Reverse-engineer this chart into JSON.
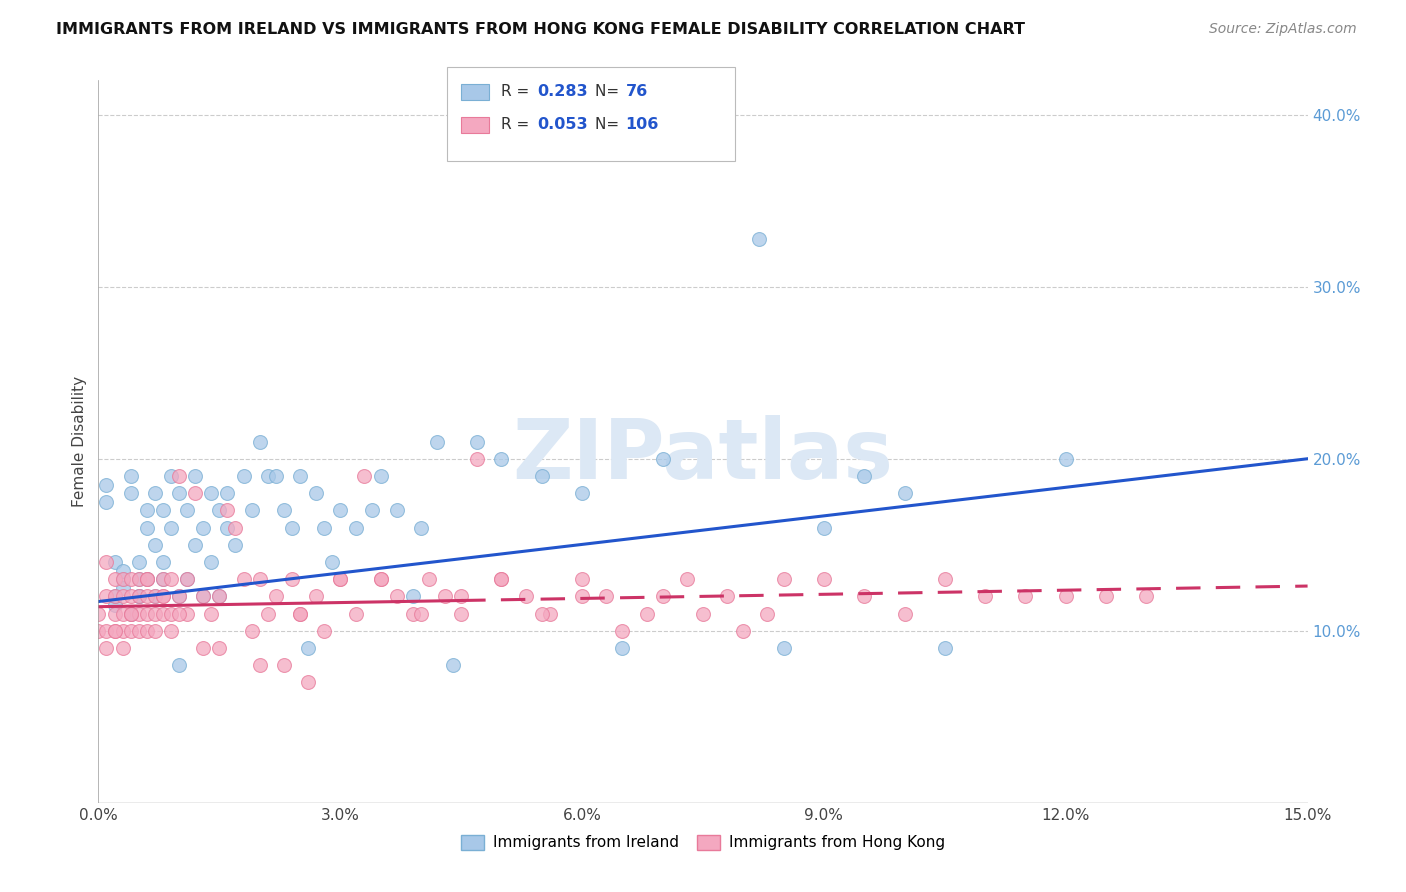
{
  "title": "IMMIGRANTS FROM IRELAND VS IMMIGRANTS FROM HONG KONG FEMALE DISABILITY CORRELATION CHART",
  "source": "Source: ZipAtlas.com",
  "ylabel": "Female Disability",
  "xlabel": "",
  "xlim": [
    0.0,
    0.15
  ],
  "ylim": [
    0.0,
    0.42
  ],
  "xticks": [
    0.0,
    0.03,
    0.06,
    0.09,
    0.12,
    0.15
  ],
  "yticks": [
    0.1,
    0.2,
    0.3,
    0.4
  ],
  "ireland_color": "#a8c8e8",
  "ireland_edge_color": "#7aafd4",
  "hong_kong_color": "#f4a8c0",
  "hong_kong_edge_color": "#e87a9a",
  "ireland_R": 0.283,
  "ireland_N": 76,
  "hong_kong_R": 0.053,
  "hong_kong_N": 106,
  "ireland_trend_color": "#2255cc",
  "hong_kong_trend_color": "#cc3366",
  "watermark": "ZIPatlas",
  "watermark_color": "#dce8f5",
  "ireland_trend_x": [
    0.0,
    0.15
  ],
  "ireland_trend_y": [
    0.117,
    0.2
  ],
  "hk_trend_x": [
    0.0,
    0.15
  ],
  "hk_trend_y": [
    0.114,
    0.126
  ],
  "ireland_x": [
    0.001,
    0.001,
    0.002,
    0.002,
    0.002,
    0.003,
    0.003,
    0.003,
    0.004,
    0.004,
    0.004,
    0.005,
    0.005,
    0.005,
    0.005,
    0.006,
    0.006,
    0.006,
    0.007,
    0.007,
    0.007,
    0.008,
    0.008,
    0.008,
    0.009,
    0.009,
    0.01,
    0.01,
    0.01,
    0.011,
    0.011,
    0.012,
    0.012,
    0.013,
    0.013,
    0.014,
    0.014,
    0.015,
    0.015,
    0.016,
    0.016,
    0.017,
    0.018,
    0.019,
    0.02,
    0.021,
    0.022,
    0.023,
    0.024,
    0.025,
    0.026,
    0.027,
    0.028,
    0.029,
    0.03,
    0.032,
    0.034,
    0.035,
    0.037,
    0.039,
    0.04,
    0.042,
    0.044,
    0.047,
    0.05,
    0.055,
    0.06,
    0.065,
    0.07,
    0.082,
    0.085,
    0.09,
    0.095,
    0.1,
    0.105,
    0.12
  ],
  "ireland_y": [
    0.175,
    0.185,
    0.115,
    0.14,
    0.12,
    0.13,
    0.125,
    0.135,
    0.19,
    0.18,
    0.11,
    0.12,
    0.13,
    0.14,
    0.12,
    0.17,
    0.16,
    0.13,
    0.18,
    0.15,
    0.12,
    0.17,
    0.14,
    0.13,
    0.19,
    0.16,
    0.18,
    0.12,
    0.08,
    0.17,
    0.13,
    0.19,
    0.15,
    0.16,
    0.12,
    0.18,
    0.14,
    0.17,
    0.12,
    0.18,
    0.16,
    0.15,
    0.19,
    0.17,
    0.21,
    0.19,
    0.19,
    0.17,
    0.16,
    0.19,
    0.09,
    0.18,
    0.16,
    0.14,
    0.17,
    0.16,
    0.17,
    0.19,
    0.17,
    0.12,
    0.16,
    0.21,
    0.08,
    0.21,
    0.2,
    0.19,
    0.18,
    0.09,
    0.2,
    0.328,
    0.09,
    0.16,
    0.19,
    0.18,
    0.09,
    0.2
  ],
  "hk_x": [
    0.0,
    0.0,
    0.001,
    0.001,
    0.001,
    0.001,
    0.002,
    0.002,
    0.002,
    0.002,
    0.003,
    0.003,
    0.003,
    0.003,
    0.003,
    0.004,
    0.004,
    0.004,
    0.004,
    0.005,
    0.005,
    0.005,
    0.005,
    0.006,
    0.006,
    0.006,
    0.006,
    0.007,
    0.007,
    0.007,
    0.008,
    0.008,
    0.008,
    0.009,
    0.009,
    0.009,
    0.01,
    0.01,
    0.011,
    0.011,
    0.012,
    0.013,
    0.013,
    0.014,
    0.015,
    0.016,
    0.017,
    0.018,
    0.019,
    0.02,
    0.021,
    0.022,
    0.023,
    0.024,
    0.025,
    0.026,
    0.027,
    0.028,
    0.03,
    0.032,
    0.033,
    0.035,
    0.037,
    0.039,
    0.041,
    0.043,
    0.045,
    0.047,
    0.05,
    0.053,
    0.056,
    0.06,
    0.063,
    0.068,
    0.073,
    0.078,
    0.083,
    0.09,
    0.095,
    0.1,
    0.105,
    0.11,
    0.115,
    0.12,
    0.125,
    0.13,
    0.035,
    0.04,
    0.045,
    0.05,
    0.055,
    0.06,
    0.065,
    0.07,
    0.075,
    0.08,
    0.085,
    0.02,
    0.025,
    0.03,
    0.015,
    0.01,
    0.008,
    0.006,
    0.004,
    0.002
  ],
  "hk_y": [
    0.1,
    0.11,
    0.09,
    0.12,
    0.14,
    0.1,
    0.1,
    0.11,
    0.13,
    0.12,
    0.1,
    0.12,
    0.11,
    0.13,
    0.09,
    0.11,
    0.12,
    0.13,
    0.1,
    0.12,
    0.11,
    0.13,
    0.1,
    0.12,
    0.11,
    0.1,
    0.13,
    0.12,
    0.11,
    0.1,
    0.13,
    0.11,
    0.12,
    0.1,
    0.13,
    0.11,
    0.19,
    0.12,
    0.11,
    0.13,
    0.18,
    0.09,
    0.12,
    0.11,
    0.09,
    0.17,
    0.16,
    0.13,
    0.1,
    0.08,
    0.11,
    0.12,
    0.08,
    0.13,
    0.11,
    0.07,
    0.12,
    0.1,
    0.13,
    0.11,
    0.19,
    0.13,
    0.12,
    0.11,
    0.13,
    0.12,
    0.11,
    0.2,
    0.13,
    0.12,
    0.11,
    0.13,
    0.12,
    0.11,
    0.13,
    0.12,
    0.11,
    0.13,
    0.12,
    0.11,
    0.13,
    0.12,
    0.12,
    0.12,
    0.12,
    0.12,
    0.13,
    0.11,
    0.12,
    0.13,
    0.11,
    0.12,
    0.1,
    0.12,
    0.11,
    0.1,
    0.13,
    0.13,
    0.11,
    0.13,
    0.12,
    0.11,
    0.12,
    0.13,
    0.11,
    0.1
  ]
}
